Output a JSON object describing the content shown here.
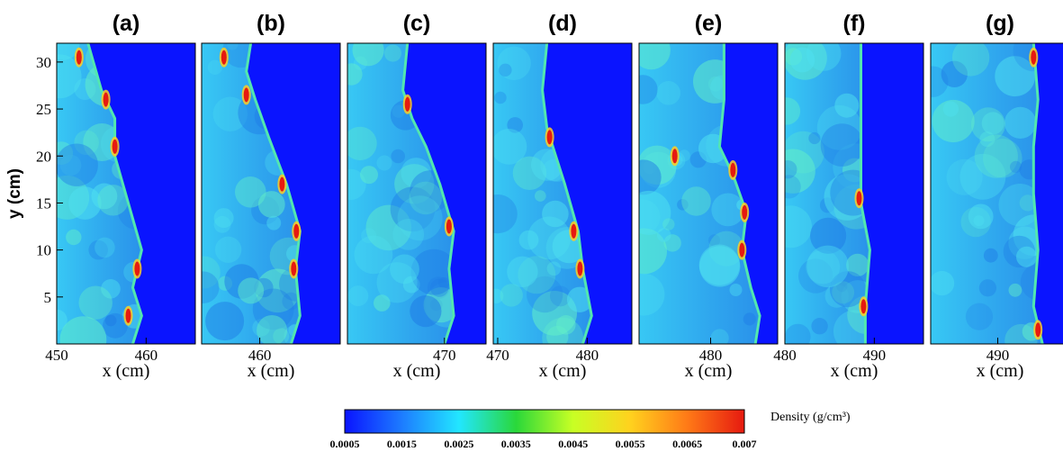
{
  "chart_data": {
    "type": "heatmap",
    "quantity": "Density (g/cm³)",
    "ylabel": "y (cm)",
    "ylim": [
      0,
      32
    ],
    "yticks": [
      "5",
      "10",
      "15",
      "20",
      "25",
      "30"
    ],
    "yvalues": [
      5,
      10,
      15,
      20,
      25,
      30
    ],
    "colorbar": {
      "label": "Density (g/cm³)",
      "range": [
        0.0005,
        0.007
      ],
      "ticks": [
        "0.0005",
        "0.0015",
        "0.0025",
        "0.0035",
        "0.0045",
        "0.0055",
        "0.0065",
        "0.007"
      ],
      "colors": [
        "#0a14ff",
        "#1d7cff",
        "#22e6ff",
        "#2ad83a",
        "#c8ff24",
        "#ffd21e",
        "#ff7a17",
        "#e61a10"
      ]
    },
    "panels": [
      {
        "label": "(a)",
        "xlabel": "x (cm)",
        "xlim": [
          450,
          465.5
        ],
        "xticks": [
          "450",
          "460"
        ],
        "xtickvalues": [
          450,
          460
        ],
        "front": [
          [
            458.5,
            0
          ],
          [
            459.5,
            3
          ],
          [
            458.5,
            6
          ],
          [
            459.5,
            10
          ],
          [
            458.0,
            15
          ],
          [
            456.5,
            20
          ],
          [
            456.5,
            24
          ],
          [
            455.0,
            27
          ],
          [
            453.5,
            32
          ]
        ],
        "hotspots": [
          [
            458,
            3
          ],
          [
            459,
            8
          ],
          [
            456.5,
            21
          ],
          [
            455.5,
            26
          ],
          [
            452.5,
            30.5
          ]
        ]
      },
      {
        "label": "(b)",
        "xlabel": "x (cm)",
        "xlim": [
          453.5,
          469
        ],
        "xticks": [
          "460"
        ],
        "xtickvalues": [
          460
        ],
        "front": [
          [
            463.5,
            0
          ],
          [
            464.5,
            3
          ],
          [
            464.0,
            8
          ],
          [
            464.5,
            12
          ],
          [
            463.0,
            17
          ],
          [
            461.0,
            22
          ],
          [
            459.5,
            26
          ],
          [
            458.5,
            29
          ],
          [
            459.0,
            32
          ]
        ],
        "hotspots": [
          [
            463.8,
            8
          ],
          [
            464.1,
            12
          ],
          [
            462.5,
            17
          ],
          [
            458.5,
            26.5
          ],
          [
            456.0,
            30.5
          ]
        ]
      },
      {
        "label": "(c)",
        "xlabel": "x (cm)",
        "xlim": [
          459.5,
          474.5
        ],
        "xticks": [
          "470"
        ],
        "xtickvalues": [
          470
        ],
        "front": [
          [
            470.0,
            0
          ],
          [
            471.0,
            3
          ],
          [
            470.5,
            8
          ],
          [
            471.0,
            12
          ],
          [
            469.5,
            17
          ],
          [
            468.0,
            21
          ],
          [
            466.5,
            24
          ],
          [
            465.5,
            27
          ],
          [
            466.0,
            32
          ]
        ],
        "hotspots": [
          [
            470.5,
            12.5
          ],
          [
            466.0,
            25.5
          ]
        ]
      },
      {
        "label": "(d)",
        "xlabel": "x (cm)",
        "xlim": [
          469.5,
          485
        ],
        "xticks": [
          "470",
          "480"
        ],
        "xtickvalues": [
          470,
          480
        ],
        "front": [
          [
            479.5,
            0
          ],
          [
            480.5,
            3
          ],
          [
            479.5,
            8
          ],
          [
            479.0,
            12
          ],
          [
            477.5,
            17
          ],
          [
            476.5,
            20
          ],
          [
            475.5,
            23
          ],
          [
            475.0,
            27
          ],
          [
            475.5,
            32
          ]
        ],
        "hotspots": [
          [
            479.2,
            8
          ],
          [
            478.5,
            12
          ],
          [
            475.8,
            22
          ]
        ]
      },
      {
        "label": "(e)",
        "xlabel": "x (cm)",
        "xlim": [
          472,
          487.5
        ],
        "xticks": [
          "480"
        ],
        "xtickvalues": [
          480
        ],
        "front": [
          [
            485.0,
            0
          ],
          [
            485.5,
            3
          ],
          [
            484.5,
            6
          ],
          [
            483.5,
            10
          ],
          [
            484.0,
            14
          ],
          [
            482.5,
            18
          ],
          [
            481.0,
            21
          ],
          [
            481.5,
            26
          ],
          [
            481.5,
            32
          ]
        ],
        "hotspots": [
          [
            483.5,
            10
          ],
          [
            483.8,
            14
          ],
          [
            482.5,
            18.5
          ],
          [
            476.0,
            20
          ]
        ]
      },
      {
        "label": "(f)",
        "xlabel": "x (cm)",
        "xlim": [
          480,
          495.5
        ],
        "xticks": [
          "480",
          "490"
        ],
        "xtickvalues": [
          480,
          490
        ],
        "front": [
          [
            489.0,
            0
          ],
          [
            489.0,
            4
          ],
          [
            489.5,
            10
          ],
          [
            488.5,
            15
          ],
          [
            488.5,
            20
          ],
          [
            488.5,
            25
          ],
          [
            488.5,
            32
          ]
        ],
        "hotspots": [
          [
            488.3,
            15.5
          ],
          [
            488.8,
            4
          ]
        ]
      },
      {
        "label": "(g)",
        "xlabel": "x (cm)",
        "xlim": [
          482.5,
          498
        ],
        "xticks": [
          "490"
        ],
        "xtickvalues": [
          490
        ],
        "front": [
          [
            495.0,
            0
          ],
          [
            494.0,
            4
          ],
          [
            494.5,
            10
          ],
          [
            494.0,
            16
          ],
          [
            494.0,
            21
          ],
          [
            494.5,
            26
          ],
          [
            494.0,
            32
          ]
        ],
        "hotspots": [
          [
            494.5,
            1.5
          ],
          [
            494.0,
            30.5
          ]
        ]
      }
    ]
  }
}
